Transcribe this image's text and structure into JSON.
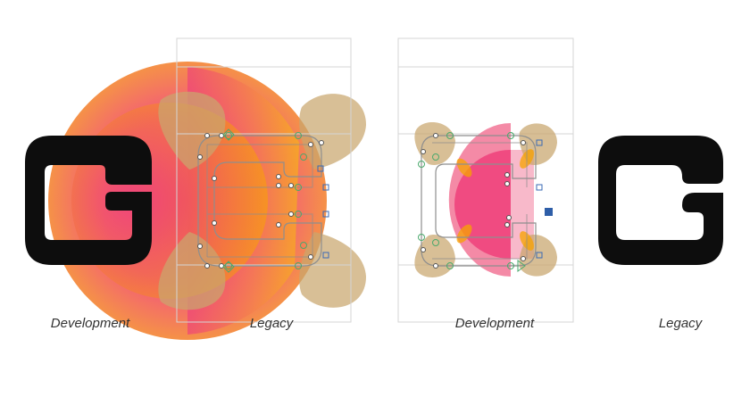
{
  "captions": [
    "Development",
    "Legacy",
    "Development",
    "Legacy"
  ],
  "colors": {
    "glyph": "#0d0d0d",
    "pink": "#ee3f7a",
    "pink_light": "#f48aa6",
    "orange": "#f7a400",
    "tan": "#c9a66d",
    "guide": "#cfcfcf",
    "outline": "#8e8e8e",
    "node_green": "#4aa96c",
    "node_blue": "#3a69b5",
    "node_blue_fill": "#2e5ea8"
  },
  "icons": [
    "glyph-g",
    "gradient-circle",
    "bezier-outline",
    "control-node"
  ]
}
